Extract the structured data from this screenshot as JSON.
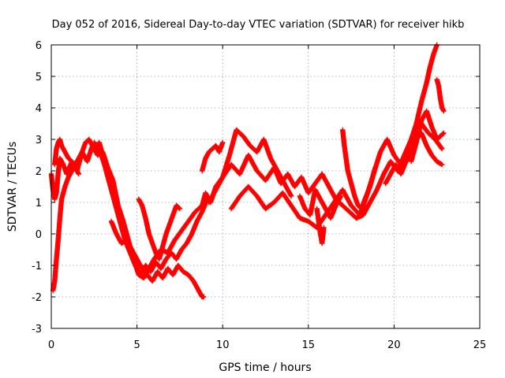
{
  "chart_data": {
    "type": "scatter",
    "title": "Day 052 of 2016, Sidereal Day-to-day VTEC variation (SDTVAR) for receiver hikb",
    "xlabel": "GPS time / hours",
    "ylabel": "SDTVAR / TECUs",
    "xlim": [
      0,
      25
    ],
    "ylim": [
      -3,
      6
    ],
    "xticks": [
      0,
      5,
      10,
      15,
      20,
      25
    ],
    "yticks": [
      -3,
      -2,
      -1,
      0,
      1,
      2,
      3,
      4,
      5,
      6
    ],
    "grid": true,
    "marker": "plus",
    "series": [
      {
        "name": "SDTVAR",
        "color": "#ff0000",
        "tracks": [
          {
            "x": [
              0.0,
              0.1,
              0.2,
              0.3,
              0.4,
              0.5,
              0.7,
              0.9,
              1.2,
              1.5,
              1.8,
              2.1,
              2.4,
              2.7,
              3.0,
              3.3,
              3.6,
              3.9,
              4.2,
              4.5,
              4.8,
              5.1,
              5.4,
              5.7,
              6.0,
              6.4,
              6.8,
              7.2,
              7.6,
              8.0,
              8.4,
              8.8,
              9.0,
              9.3,
              9.6,
              10.0,
              10.5,
              11.0,
              11.5,
              12.0,
              12.5,
              13.0,
              13.4,
              13.8,
              14.2,
              14.6,
              15.0,
              15.4,
              15.8,
              16.2,
              16.6,
              17.0,
              17.4,
              17.8,
              18.2,
              18.6,
              19.0,
              19.4,
              19.8,
              20.2,
              20.6,
              21.0,
              21.3,
              21.6,
              21.9,
              22.1,
              22.3,
              22.5
            ],
            "y": [
              1.9,
              1.4,
              1.1,
              1.3,
              1.9,
              2.4,
              2.2,
              1.9,
              2.3,
              2.0,
              2.6,
              2.3,
              2.8,
              2.5,
              2.6,
              2.1,
              1.7,
              0.9,
              0.4,
              -0.2,
              -0.8,
              -1.3,
              -1.4,
              -1.1,
              -0.8,
              -0.5,
              -0.6,
              -0.2,
              0.1,
              0.4,
              0.7,
              0.9,
              1.3,
              1.0,
              1.5,
              1.8,
              2.2,
              1.9,
              2.5,
              2.0,
              1.7,
              2.1,
              1.6,
              1.9,
              1.5,
              1.8,
              1.3,
              1.6,
              1.9,
              1.5,
              1.1,
              0.9,
              0.7,
              0.5,
              0.6,
              1.0,
              1.4,
              1.9,
              2.3,
              2.0,
              2.5,
              3.0,
              3.5,
              4.2,
              4.8,
              5.3,
              5.7,
              6.0
            ]
          },
          {
            "x": [
              0.1,
              0.2,
              0.3,
              0.4,
              0.5,
              0.6,
              0.8,
              1.0,
              1.2,
              1.4,
              1.6,
              1.8,
              2.0,
              2.2,
              2.4,
              2.6,
              2.8,
              3.0,
              3.2,
              3.4
            ],
            "y": [
              -1.8,
              -1.5,
              -0.8,
              -0.2,
              0.5,
              1.1,
              1.5,
              1.8,
              2.0,
              2.2,
              2.4,
              2.6,
              2.9,
              3.0,
              2.8,
              2.7,
              2.9,
              2.5,
              2.2,
              1.8
            ]
          },
          {
            "x": [
              0.2,
              0.3,
              0.4,
              0.5,
              0.6,
              0.8,
              1.0,
              1.2,
              1.4,
              1.6
            ],
            "y": [
              2.2,
              2.7,
              2.9,
              3.0,
              2.8,
              2.6,
              2.4,
              2.3,
              2.1,
              1.9
            ]
          },
          {
            "x": [
              2.5,
              2.8,
              3.1,
              3.4,
              3.7,
              4.0,
              4.3,
              4.6,
              4.9,
              5.2,
              5.5,
              5.8,
              6.1,
              6.4,
              6.7,
              7.0,
              7.3,
              7.6,
              7.9,
              8.2,
              8.5,
              8.8,
              9.1
            ],
            "y": [
              2.9,
              2.7,
              2.2,
              1.6,
              1.0,
              0.4,
              -0.2,
              -0.6,
              -1.0,
              -1.3,
              -1.0,
              -1.2,
              -0.9,
              -1.1,
              -0.8,
              -0.6,
              -0.8,
              -0.5,
              -0.3,
              0.0,
              0.4,
              0.7,
              1.1
            ]
          },
          {
            "x": [
              3.5,
              3.8,
              4.1,
              4.4,
              4.7,
              5.0,
              5.3,
              5.6,
              5.9,
              6.2,
              6.5,
              6.8,
              7.1,
              7.4,
              7.7,
              8.0,
              8.3,
              8.6,
              8.8,
              8.9
            ],
            "y": [
              0.4,
              0.0,
              -0.3,
              -0.2,
              -0.5,
              -0.8,
              -1.1,
              -1.3,
              -1.5,
              -1.2,
              -1.4,
              -1.1,
              -1.3,
              -1.0,
              -1.2,
              -1.3,
              -1.5,
              -1.8,
              -2.0,
              -2.0
            ]
          },
          {
            "x": [
              5.1,
              5.3,
              5.5,
              5.7,
              5.9,
              6.1,
              6.3,
              6.5,
              6.7,
              6.9,
              7.1,
              7.3,
              7.5
            ],
            "y": [
              1.1,
              0.9,
              0.5,
              0.0,
              -0.3,
              -0.6,
              -0.8,
              -0.4,
              0.0,
              0.3,
              0.6,
              0.9,
              0.8
            ]
          },
          {
            "x": [
              8.8,
              9.0,
              9.2,
              9.4,
              9.6,
              9.8,
              10.0
            ],
            "y": [
              2.0,
              2.4,
              2.6,
              2.7,
              2.8,
              2.6,
              2.9
            ]
          },
          {
            "x": [
              9.2,
              9.6,
              10.0,
              10.4,
              10.8,
              11.2,
              11.6,
              12.0,
              12.4,
              12.8,
              13.2,
              13.6,
              14.0
            ],
            "y": [
              1.0,
              1.4,
              1.8,
              2.5,
              3.3,
              3.1,
              2.8,
              2.6,
              3.0,
              2.4,
              2.0,
              1.6,
              1.2
            ]
          },
          {
            "x": [
              10.5,
              11.0,
              11.5,
              12.0,
              12.5,
              13.0,
              13.5,
              14.0,
              14.5,
              15.0,
              15.5,
              16.0,
              16.5,
              17.0,
              17.5,
              18.0
            ],
            "y": [
              0.8,
              1.2,
              1.5,
              1.2,
              0.8,
              1.0,
              1.3,
              0.9,
              0.5,
              0.4,
              0.2,
              0.6,
              1.0,
              1.4,
              0.9,
              0.6
            ]
          },
          {
            "x": [
              14.5,
              14.8,
              15.1,
              15.4,
              15.7,
              16.0,
              16.3,
              16.6,
              16.9
            ],
            "y": [
              1.2,
              0.8,
              0.6,
              1.4,
              1.1,
              0.8,
              0.5,
              0.9,
              1.2
            ]
          },
          {
            "x": [
              15.5,
              15.6,
              15.7,
              15.8,
              15.9
            ],
            "y": [
              0.8,
              0.4,
              0.0,
              -0.3,
              0.2
            ]
          },
          {
            "x": [
              17.0,
              17.1,
              17.2,
              17.3,
              17.5,
              17.7,
              17.9,
              18.1,
              18.3,
              18.6,
              18.9
            ],
            "y": [
              3.3,
              2.8,
              2.4,
              2.0,
              1.6,
              1.2,
              0.9,
              0.8,
              1.1,
              1.5,
              2.1
            ]
          },
          {
            "x": [
              18.0,
              18.4,
              18.8,
              19.2,
              19.6,
              20.0,
              20.4,
              20.8,
              21.2,
              21.6,
              22.0,
              22.4,
              22.8
            ],
            "y": [
              0.6,
              1.2,
              1.9,
              2.6,
              3.0,
              2.5,
              2.2,
              2.7,
              3.2,
              3.5,
              3.2,
              3.0,
              2.7
            ]
          },
          {
            "x": [
              19.5,
              19.8,
              20.1,
              20.4,
              20.7,
              21.0,
              21.3,
              21.6,
              21.9,
              22.2,
              22.5,
              22.8
            ],
            "y": [
              1.6,
              1.9,
              2.2,
              1.9,
              2.3,
              2.6,
              3.0,
              3.2,
              2.8,
              2.5,
              2.3,
              2.2
            ]
          },
          {
            "x": [
              21.0,
              21.3,
              21.6,
              21.9,
              22.2,
              22.5,
              22.7,
              22.9
            ],
            "y": [
              2.3,
              2.9,
              3.6,
              3.9,
              3.4,
              3.0,
              3.1,
              3.2
            ]
          },
          {
            "x": [
              22.5,
              22.6,
              22.7,
              22.8,
              22.9
            ],
            "y": [
              4.9,
              4.7,
              4.3,
              4.0,
              3.9
            ]
          }
        ]
      }
    ]
  }
}
